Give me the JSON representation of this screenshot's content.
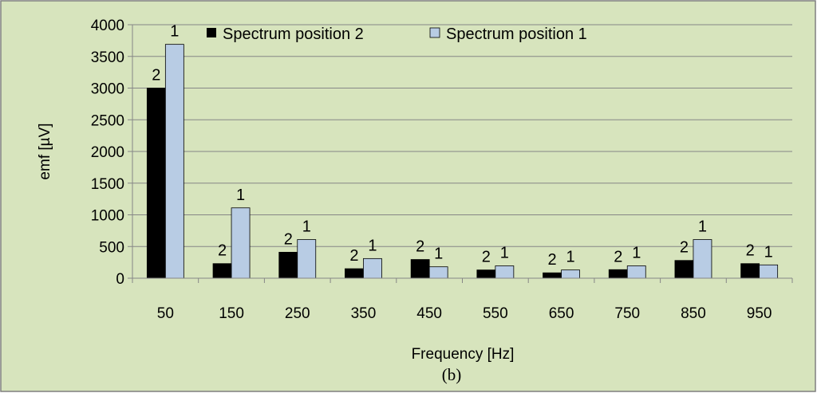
{
  "chart_data": {
    "type": "bar",
    "categories": [
      "50",
      "150",
      "250",
      "350",
      "450",
      "550",
      "650",
      "750",
      "850",
      "950"
    ],
    "series": [
      {
        "name": "Spectrum position 2",
        "values": [
          3000,
          230,
          410,
          150,
          295,
          130,
          85,
          135,
          280,
          230
        ],
        "color": "#000000",
        "bar_label": "2"
      },
      {
        "name": "Spectrum position 1",
        "values": [
          3690,
          1110,
          610,
          310,
          180,
          195,
          130,
          195,
          610,
          210
        ],
        "color": "#b8cce4",
        "bar_label": "1"
      }
    ],
    "title": "",
    "xlabel": "Frequency [Hz]",
    "ylabel": "emf [µV]",
    "ylim": [
      0,
      4000
    ],
    "yticks": [
      "0",
      "500",
      "1000",
      "1500",
      "2000",
      "2500",
      "3000",
      "3500",
      "4000"
    ],
    "grid": true,
    "legend_position": "top",
    "background": "#d7e4bd",
    "caption": "(b)"
  }
}
